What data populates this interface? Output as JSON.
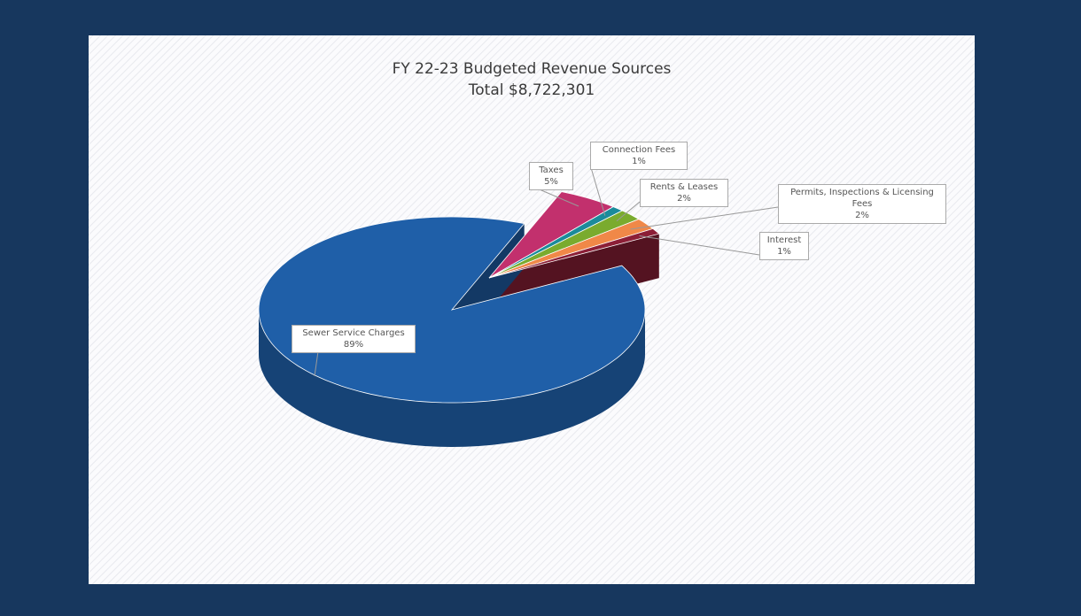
{
  "chart_data": {
    "type": "pie",
    "title": "FY 22-23 Budgeted Revenue Sources",
    "subtitle": "Total $8,722,301",
    "categories": [
      "Taxes",
      "Connection Fees",
      "Rents & Leases",
      "Permits, Inspections & Licensing Fees",
      "Interest",
      "Sewer Service Charges"
    ],
    "values": [
      5,
      1,
      2,
      2,
      1,
      89
    ],
    "value_labels": [
      "5%",
      "1%",
      "2%",
      "2%",
      "1%",
      "89%"
    ],
    "colors": [
      "#c2306d",
      "#1b8b9b",
      "#7aab2e",
      "#f08848",
      "#8c1f37",
      "#1f5fa8"
    ]
  }
}
